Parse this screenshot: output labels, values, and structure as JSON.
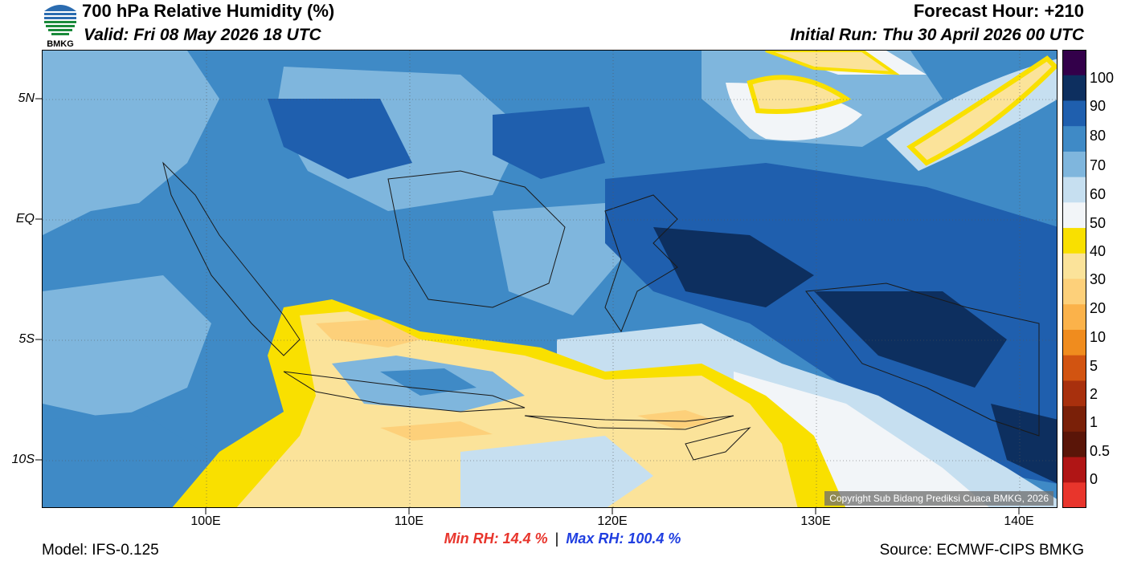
{
  "header": {
    "title": "700 hPa Relative Humidity (%)",
    "valid": "Valid: Fri 08 May 2026 18 UTC",
    "forecast_hour": "Forecast Hour: +210",
    "initial_run": "Initial Run: Thu 30 April 2026 00 UTC"
  },
  "logo": {
    "text": "BMKG",
    "icon": "bmkg-logo-icon"
  },
  "map": {
    "lat_labels": [
      "5N",
      "EQ",
      "5S",
      "10S"
    ],
    "lon_labels": [
      "100E",
      "110E",
      "120E",
      "130E",
      "140E"
    ],
    "copyright": "Copyright Sub Bidang Prediksi Cuaca BMKG, 2026"
  },
  "colorbar": {
    "labels": [
      "100",
      "90",
      "80",
      "70",
      "60",
      "50",
      "40",
      "30",
      "20",
      "10",
      "5",
      "2",
      "1",
      "0.5",
      "0"
    ],
    "colors": [
      "#33004a",
      "#0d2f5f",
      "#1f5fae",
      "#3f8ac6",
      "#7fb6dd",
      "#c6dff0",
      "#f2f5f8",
      "#f9e000",
      "#fbe39a",
      "#fdd07a",
      "#fbb24a",
      "#f08c1e",
      "#d25411",
      "#a8300d",
      "#7a2008",
      "#5a1508",
      "#b01515",
      "#e8352c"
    ]
  },
  "stats": {
    "min": "Min RH:  14.4 %",
    "max": "Max RH: 100.4 %",
    "separator": "|"
  },
  "footer": {
    "model": "Model: IFS-0.125",
    "source": "Source: ECMWF-CIPS BMKG"
  }
}
